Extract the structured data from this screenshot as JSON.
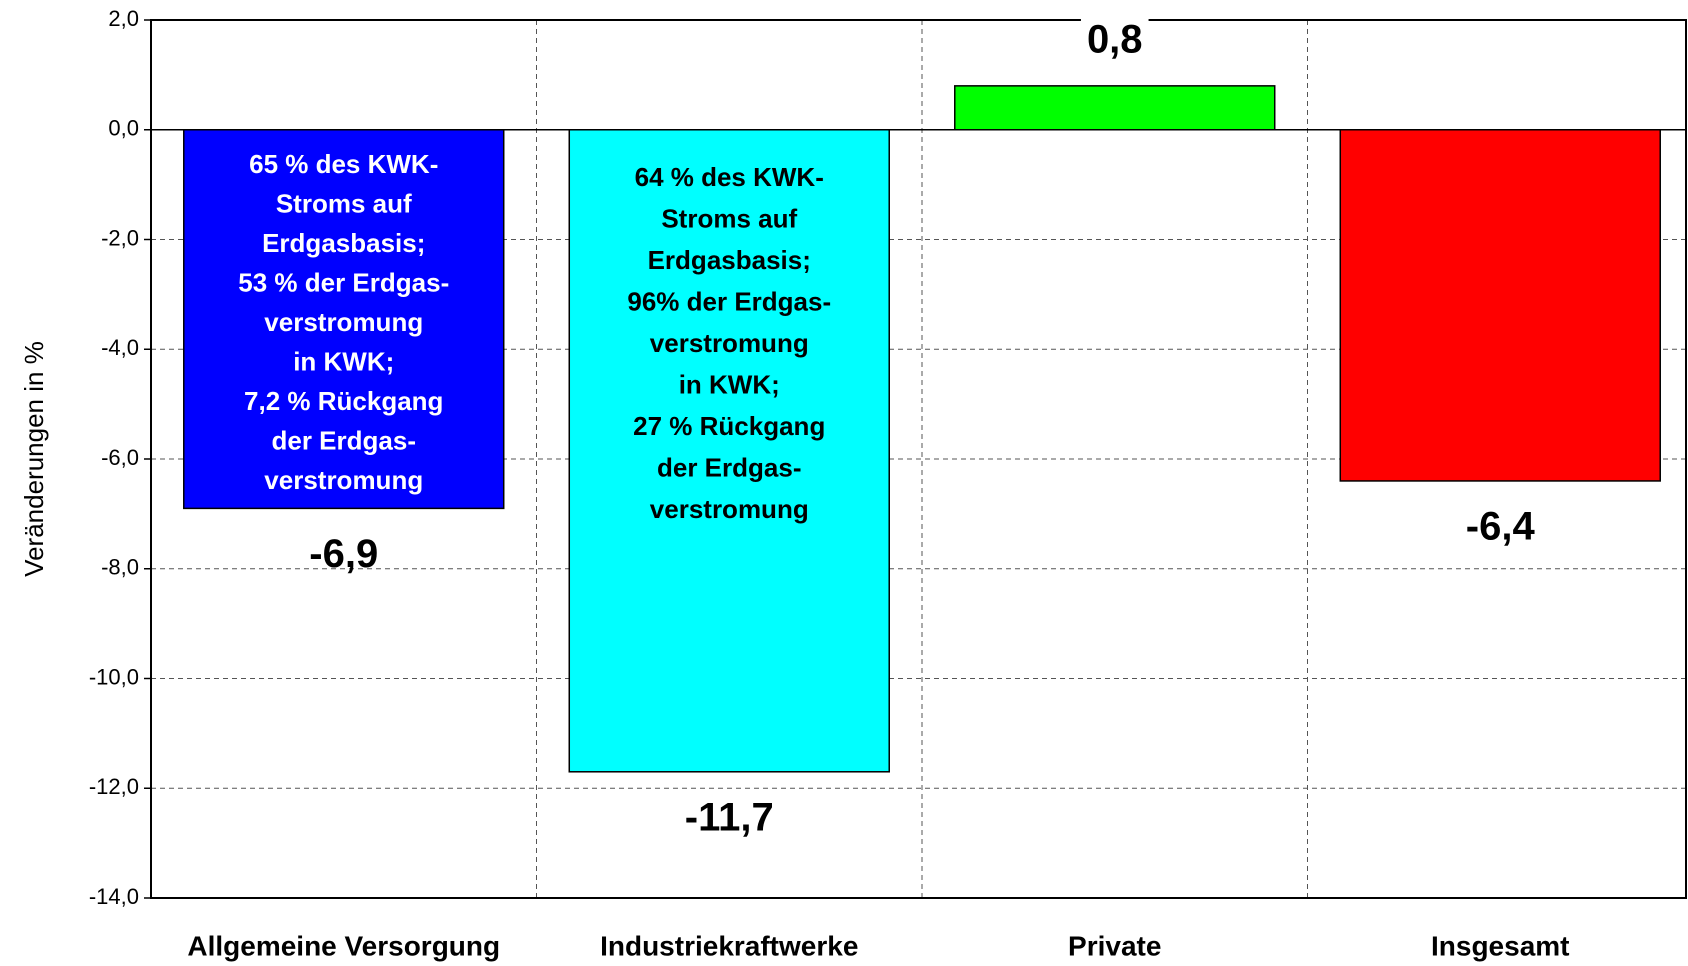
{
  "chart_data": {
    "type": "bar",
    "y_label": "Veränderungen in %",
    "categories": [
      "Allgemeine Versorgung",
      "Industriekraftwerke",
      "Private",
      "Insgesamt"
    ],
    "values": [
      -6.9,
      -11.7,
      0.8,
      -6.4
    ],
    "value_labels": [
      "-6,9",
      "-11,7",
      "0,8",
      "-6,4"
    ],
    "colors": [
      "#0000ff",
      "#00ffff",
      "#00ff00",
      "#ff0000"
    ],
    "ylim": [
      -14,
      2
    ],
    "yticks": [
      {
        "value": -14,
        "label": "-14,0"
      },
      {
        "value": -12,
        "label": "-12,0"
      },
      {
        "value": -10,
        "label": "-10,0"
      },
      {
        "value": -8,
        "label": "-8,0"
      },
      {
        "value": -6,
        "label": "-6,0"
      },
      {
        "value": -4,
        "label": "-4,0"
      },
      {
        "value": -2,
        "label": "-2,0"
      },
      {
        "value": 0,
        "label": "0,0"
      },
      {
        "value": 2,
        "label": "2,0"
      }
    ],
    "grid": true,
    "annotations": [
      {
        "color": "#ffffff",
        "lines": [
          "65 % des KWK-",
          "Stroms auf",
          "Erdgasbasis;",
          "53 % der Erdgas-",
          "verstromung",
          "in KWK;",
          "7,2 % Rückgang",
          "der Erdgas-",
          "verstromung"
        ]
      },
      {
        "color": "#000000",
        "lines": [
          "64 % des KWK-",
          "Stroms auf",
          "Erdgasbasis;",
          "96% der Erdgas-",
          "verstromung",
          "in KWK;",
          "27 % Rückgang",
          "der Erdgas-",
          "verstromung"
        ]
      }
    ]
  }
}
